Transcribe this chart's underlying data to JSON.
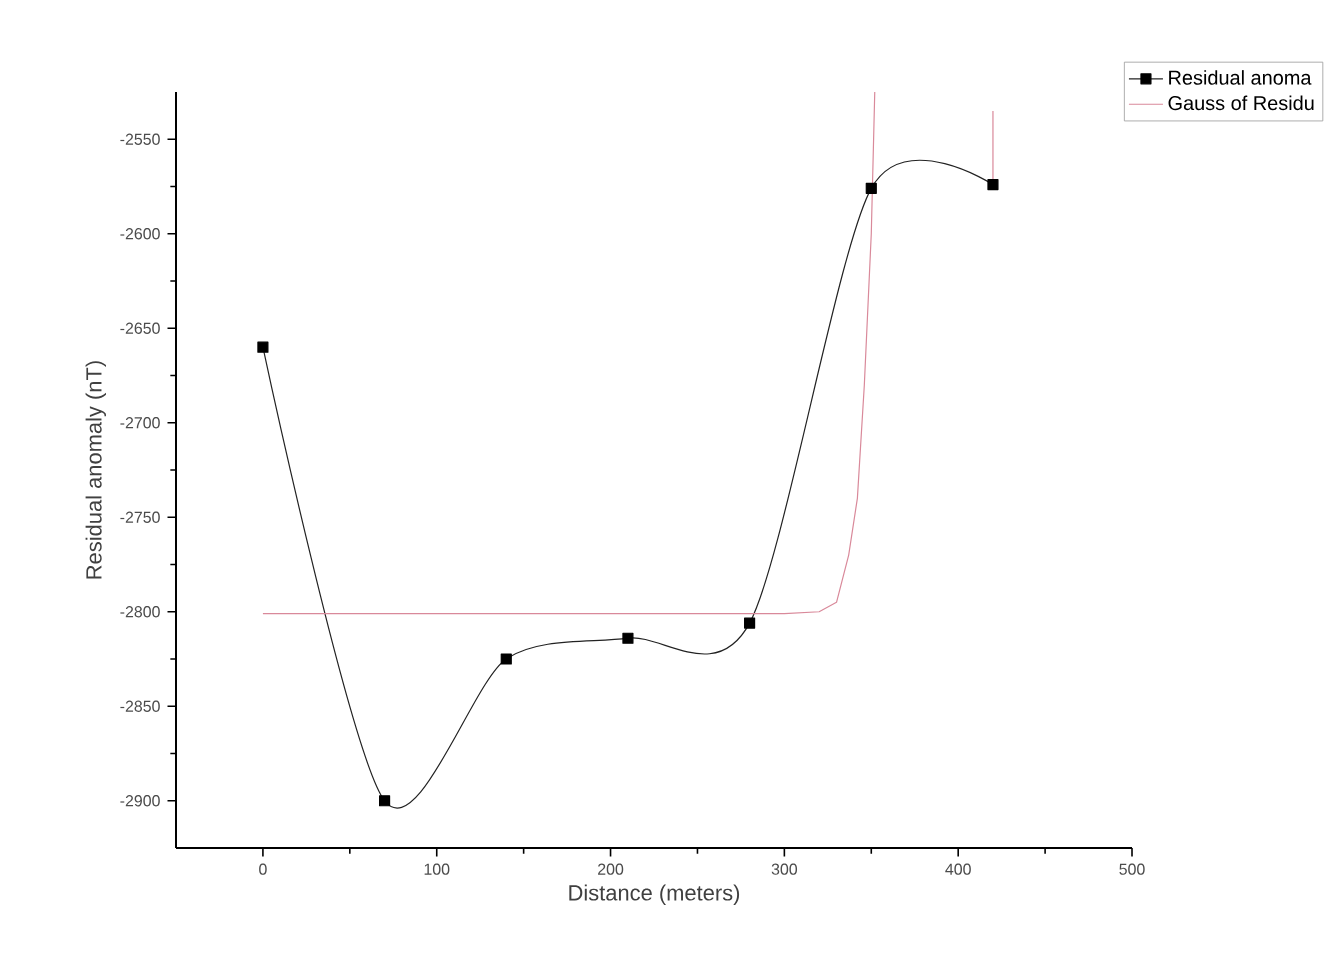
{
  "chart_data": {
    "type": "line",
    "xlabel": "Distance (meters)",
    "ylabel": "Residual anomaly (nT)",
    "xlim": [
      -50,
      500
    ],
    "ylim": [
      -2925,
      -2525
    ],
    "xticks": [
      0,
      100,
      200,
      300,
      400,
      500
    ],
    "yticks": [
      -2900,
      -2850,
      -2800,
      -2750,
      -2700,
      -2650,
      -2600,
      -2550
    ],
    "grid": false,
    "legend": "top right",
    "series": [
      {
        "name": "Residual anoma",
        "color": "#222222",
        "marker": "square",
        "x": [
          0,
          70,
          140,
          210,
          280,
          350,
          420
        ],
        "values": [
          -2660,
          -2900,
          -2825,
          -2814,
          -2806,
          -2576,
          -2574
        ]
      },
      {
        "name": "Gauss of Residu",
        "color": "#d9899a",
        "marker": "none",
        "x": [
          0,
          100,
          200,
          300,
          320,
          330,
          337,
          342,
          346,
          350,
          352,
          386,
          420,
          420
        ],
        "values": [
          -2801,
          -2801,
          -2801,
          -2801,
          -2800,
          -2795,
          -2770,
          -2740,
          -2680,
          -2600,
          -2525,
          null,
          -2535,
          -2572
        ]
      }
    ]
  }
}
